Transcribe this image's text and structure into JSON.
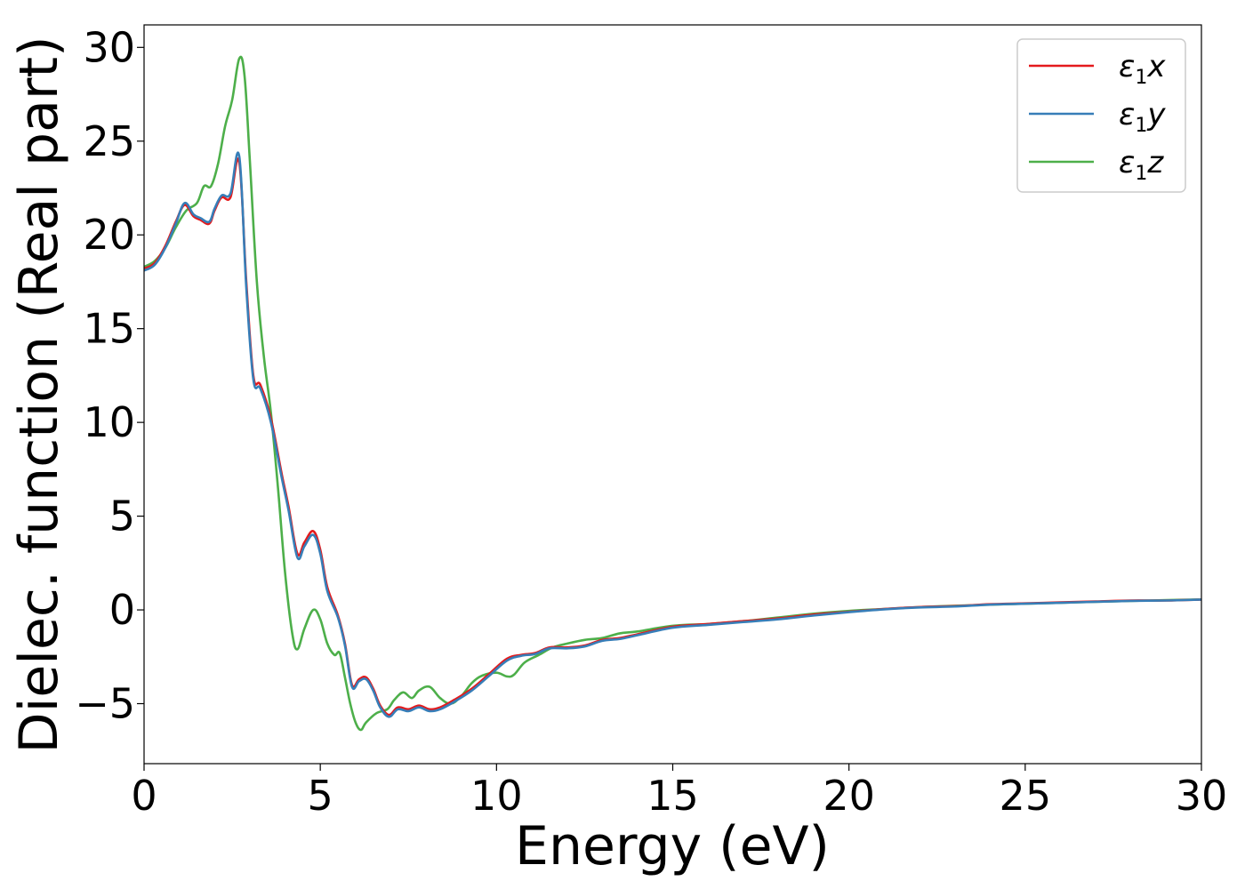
{
  "chart_data": {
    "type": "line",
    "title": "",
    "xlabel": "Energy (eV)",
    "ylabel": "Dielec. function (Real part)",
    "xlim": [
      0,
      30
    ],
    "ylim": [
      -8.2,
      31.2
    ],
    "xticks": [
      "0",
      "5",
      "10",
      "15",
      "20",
      "25",
      "30"
    ],
    "yticks": [
      "−5",
      "0",
      "5",
      "10",
      "15",
      "20",
      "25",
      "30"
    ],
    "ytick_values": [
      -5,
      0,
      5,
      10,
      15,
      20,
      25,
      30
    ],
    "xtick_values": [
      0,
      5,
      10,
      15,
      20,
      25,
      30
    ],
    "grid": false,
    "legend_position": "top-right",
    "series": [
      {
        "name": "ε₁x",
        "legend_symbol": "ε",
        "legend_sub": "1",
        "legend_var": "x",
        "color": "#e41a1c",
        "x": [
          0,
          0.3,
          0.6,
          0.9,
          1.15,
          1.4,
          1.6,
          1.85,
          2.0,
          2.2,
          2.45,
          2.7,
          2.9,
          3.1,
          3.3,
          3.6,
          3.9,
          4.1,
          4.35,
          4.55,
          4.8,
          5.0,
          5.2,
          5.5,
          5.7,
          5.9,
          6.1,
          6.3,
          6.5,
          6.7,
          6.95,
          7.2,
          7.5,
          7.8,
          8.1,
          8.4,
          8.8,
          9.3,
          9.8,
          10.3,
          10.7,
          11.1,
          11.5,
          12.0,
          12.5,
          13.0,
          13.5,
          14.0,
          15.0,
          16.0,
          17.0,
          18.0,
          19.0,
          20.0,
          21.0,
          22.0,
          23.0,
          24.0,
          25.0,
          26.0,
          27.0,
          28.0,
          29.0,
          30.0
        ],
        "y": [
          18.2,
          18.5,
          19.4,
          20.7,
          21.6,
          21.0,
          20.8,
          20.6,
          21.3,
          22.0,
          22.0,
          23.9,
          17.5,
          12.5,
          12.0,
          10.2,
          7.3,
          5.5,
          3.0,
          3.6,
          4.2,
          3.2,
          1.2,
          -0.3,
          -1.8,
          -4.0,
          -3.7,
          -3.6,
          -4.2,
          -5.1,
          -5.6,
          -5.2,
          -5.3,
          -5.1,
          -5.3,
          -5.2,
          -4.8,
          -4.2,
          -3.4,
          -2.6,
          -2.4,
          -2.3,
          -2.0,
          -2.0,
          -1.9,
          -1.6,
          -1.5,
          -1.3,
          -0.9,
          -0.75,
          -0.6,
          -0.45,
          -0.25,
          -0.1,
          0.05,
          0.15,
          0.2,
          0.3,
          0.35,
          0.4,
          0.45,
          0.5,
          0.5,
          0.55
        ]
      },
      {
        "name": "ε₁y",
        "legend_symbol": "ε",
        "legend_sub": "1",
        "legend_var": "y",
        "color": "#377eb8",
        "x": [
          0,
          0.3,
          0.6,
          0.9,
          1.15,
          1.4,
          1.6,
          1.85,
          2.0,
          2.2,
          2.45,
          2.7,
          2.9,
          3.1,
          3.3,
          3.6,
          3.9,
          4.1,
          4.35,
          4.55,
          4.8,
          5.0,
          5.2,
          5.5,
          5.7,
          5.9,
          6.1,
          6.3,
          6.5,
          6.7,
          6.95,
          7.2,
          7.5,
          7.8,
          8.1,
          8.4,
          8.8,
          9.3,
          9.8,
          10.3,
          10.7,
          11.1,
          11.5,
          12.0,
          12.5,
          13.0,
          13.5,
          14.0,
          15.0,
          16.0,
          17.0,
          18.0,
          19.0,
          20.0,
          21.0,
          22.0,
          23.0,
          24.0,
          25.0,
          26.0,
          27.0,
          28.0,
          29.0,
          30.0
        ],
        "y": [
          18.1,
          18.4,
          19.3,
          20.6,
          21.7,
          21.1,
          20.9,
          20.7,
          21.4,
          22.1,
          22.2,
          24.2,
          17.2,
          12.3,
          11.8,
          10.0,
          7.1,
          5.3,
          2.8,
          3.4,
          4.0,
          3.0,
          1.0,
          -0.4,
          -1.9,
          -4.1,
          -3.8,
          -3.7,
          -4.3,
          -5.2,
          -5.7,
          -5.3,
          -5.4,
          -5.2,
          -5.4,
          -5.3,
          -4.9,
          -4.3,
          -3.5,
          -2.7,
          -2.45,
          -2.35,
          -2.05,
          -2.05,
          -1.95,
          -1.65,
          -1.55,
          -1.35,
          -0.95,
          -0.8,
          -0.65,
          -0.5,
          -0.3,
          -0.12,
          0.03,
          0.13,
          0.18,
          0.28,
          0.33,
          0.38,
          0.43,
          0.48,
          0.5,
          0.55
        ]
      },
      {
        "name": "ε₁z",
        "legend_symbol": "ε",
        "legend_sub": "1",
        "legend_var": "z",
        "color": "#4daf4a",
        "x": [
          0,
          0.3,
          0.6,
          0.9,
          1.2,
          1.5,
          1.7,
          1.9,
          2.1,
          2.3,
          2.5,
          2.7,
          2.85,
          3.0,
          3.2,
          3.4,
          3.6,
          3.8,
          4.0,
          4.2,
          4.35,
          4.55,
          4.8,
          5.0,
          5.2,
          5.4,
          5.55,
          5.7,
          5.85,
          6.0,
          6.15,
          6.3,
          6.6,
          6.9,
          7.1,
          7.35,
          7.6,
          7.8,
          8.1,
          8.4,
          8.7,
          9.0,
          9.3,
          9.6,
          10.0,
          10.3,
          10.5,
          10.8,
          11.2,
          11.6,
          12.0,
          12.5,
          13.0,
          13.5,
          14.0,
          15.0,
          16.0,
          17.0,
          18.0,
          19.0,
          20.0,
          21.0,
          22.0,
          23.0,
          24.0,
          25.0,
          26.0,
          27.0,
          28.0,
          29.0,
          30.0
        ],
        "y": [
          18.3,
          18.6,
          19.3,
          20.4,
          21.3,
          21.7,
          22.6,
          22.6,
          23.8,
          25.8,
          27.2,
          29.4,
          28.5,
          24.0,
          17.5,
          13.5,
          10.5,
          6.5,
          2.0,
          -1.2,
          -2.1,
          -1.0,
          0.0,
          -0.5,
          -1.8,
          -2.4,
          -2.3,
          -3.6,
          -5.0,
          -6.0,
          -6.4,
          -6.0,
          -5.5,
          -5.3,
          -4.8,
          -4.4,
          -4.7,
          -4.3,
          -4.1,
          -4.7,
          -5.0,
          -4.6,
          -3.9,
          -3.5,
          -3.35,
          -3.55,
          -3.45,
          -2.8,
          -2.4,
          -2.0,
          -1.8,
          -1.6,
          -1.5,
          -1.25,
          -1.15,
          -0.85,
          -0.75,
          -0.6,
          -0.4,
          -0.2,
          -0.05,
          0.05,
          0.15,
          0.22,
          0.28,
          0.33,
          0.38,
          0.43,
          0.48,
          0.52,
          0.56
        ]
      }
    ]
  }
}
